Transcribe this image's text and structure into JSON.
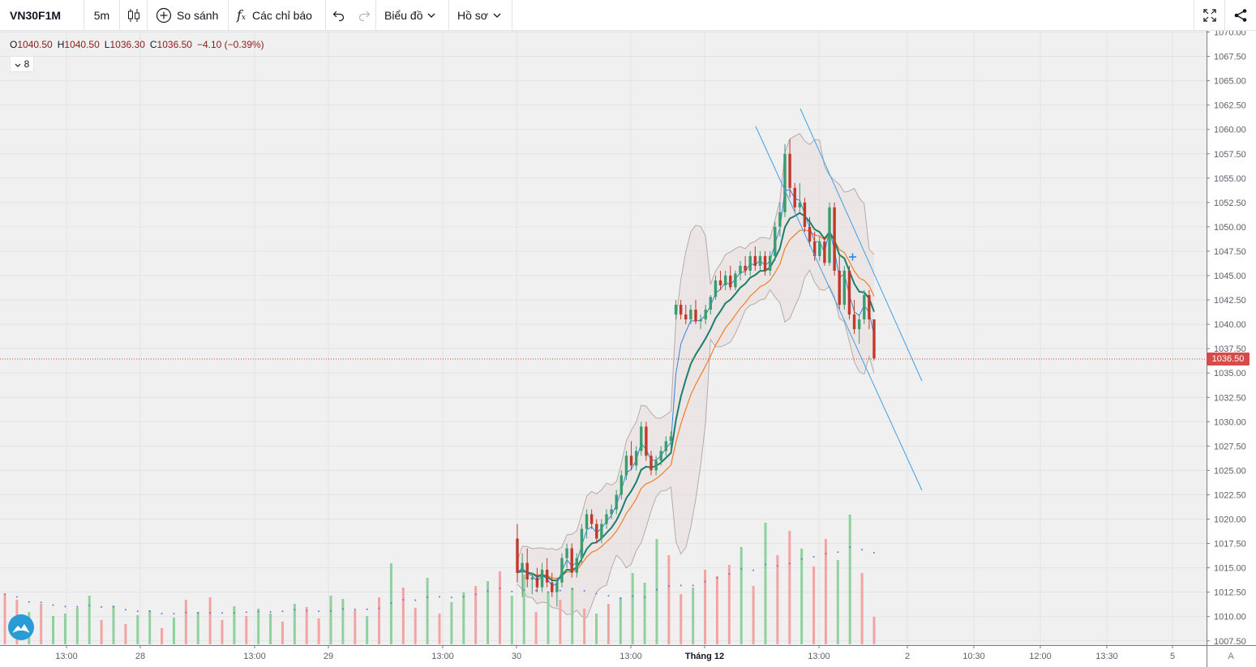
{
  "toolbar": {
    "symbol": "VN30F1M",
    "interval": "5m",
    "compare": "So sánh",
    "indicators": "Các chỉ báo",
    "chart_menu": "Biểu đồ",
    "profile_menu": "Hồ sơ"
  },
  "legend": {
    "open_label": "O",
    "open": "1040.50",
    "high_label": "H",
    "high": "1040.50",
    "low_label": "L",
    "low": "1036.30",
    "close_label": "C",
    "close": "1036.50",
    "change": "−4.10 (−0.39%)"
  },
  "indicator_count": "8",
  "last_price": "1036.50",
  "auto_scale": "A",
  "colors": {
    "up": "#3a9d6e",
    "down": "#c0392b",
    "vol_up": "#8fd19e",
    "vol_down": "#f4a3a3",
    "ema_fast": "#2e86de",
    "ema_slow": "#f07f23",
    "ema_mid": "#1b7f6c",
    "band": "#b6aaaa",
    "channel": "#3ea0e6",
    "price_line": "#e04040",
    "bg": "#f0f0f0"
  },
  "chart_data": {
    "type": "candlestick",
    "y_axis_labels": [
      "1070.00",
      "1067.50",
      "1065.00",
      "1062.50",
      "1060.00",
      "1057.50",
      "1055.00",
      "1052.50",
      "1050.00",
      "1047.50",
      "1045.00",
      "1042.50",
      "1040.00",
      "1037.50",
      "1035.00",
      "1032.50",
      "1030.00",
      "1027.50",
      "1025.00",
      "1022.50",
      "1020.00",
      "1017.50",
      "1015.00",
      "1012.50",
      "1010.00",
      "1007.50"
    ],
    "ylim": [
      1007.5,
      1070
    ],
    "x_axis_labels": [
      {
        "label": "13:00",
        "bold": false
      },
      {
        "label": "28",
        "bold": false
      },
      {
        "label": "13:00",
        "bold": false
      },
      {
        "label": "29",
        "bold": false
      },
      {
        "label": "13:00",
        "bold": false
      },
      {
        "label": "30",
        "bold": false
      },
      {
        "label": "13:00",
        "bold": false
      },
      {
        "label": "Tháng 12",
        "bold": true
      },
      {
        "label": "13:00",
        "bold": false
      },
      {
        "label": "2",
        "bold": false
      },
      {
        "label": "10:30",
        "bold": false
      },
      {
        "label": "12:00",
        "bold": false
      },
      {
        "label": "13:30",
        "bold": false
      },
      {
        "label": "5",
        "bold": false
      }
    ],
    "candles": [
      [
        1018.0,
        1019.5,
        1013.5,
        1014.5
      ],
      [
        1014.5,
        1016.5,
        1012.0,
        1015.5
      ],
      [
        1015.5,
        1017.0,
        1013.0,
        1013.8
      ],
      [
        1013.8,
        1014.5,
        1012.3,
        1014.0
      ],
      [
        1014.0,
        1015.0,
        1012.5,
        1013.0
      ],
      [
        1013.0,
        1015.5,
        1012.5,
        1014.8
      ],
      [
        1014.8,
        1016.0,
        1013.0,
        1013.5
      ],
      [
        1013.5,
        1014.5,
        1012.0,
        1012.5
      ],
      [
        1012.5,
        1014.0,
        1011.0,
        1013.5
      ],
      [
        1013.5,
        1016.5,
        1013.0,
        1016.0
      ],
      [
        1016.0,
        1017.5,
        1015.0,
        1017.0
      ],
      [
        1017.0,
        1017.5,
        1014.0,
        1014.5
      ],
      [
        1014.5,
        1016.5,
        1014.0,
        1016.0
      ],
      [
        1016.0,
        1019.5,
        1015.5,
        1019.0
      ],
      [
        1019.0,
        1021.0,
        1018.0,
        1020.5
      ],
      [
        1020.5,
        1021.0,
        1019.0,
        1019.5
      ],
      [
        1019.5,
        1020.0,
        1017.5,
        1018.0
      ],
      [
        1018.0,
        1020.0,
        1017.5,
        1019.5
      ],
      [
        1019.5,
        1021.0,
        1019.0,
        1020.5
      ],
      [
        1020.5,
        1021.5,
        1020.0,
        1021.0
      ],
      [
        1021.0,
        1023.0,
        1020.5,
        1022.5
      ],
      [
        1022.5,
        1025.0,
        1022.0,
        1024.5
      ],
      [
        1024.5,
        1027.0,
        1024.0,
        1026.5
      ],
      [
        1026.5,
        1028.0,
        1025.0,
        1025.5
      ],
      [
        1025.5,
        1027.5,
        1025.0,
        1027.0
      ],
      [
        1027.0,
        1030.0,
        1026.5,
        1029.5
      ],
      [
        1029.5,
        1030.0,
        1026.0,
        1026.5
      ],
      [
        1026.5,
        1027.0,
        1024.5,
        1025.0
      ],
      [
        1025.0,
        1026.5,
        1024.5,
        1026.0
      ],
      [
        1026.0,
        1027.5,
        1025.5,
        1027.0
      ],
      [
        1027.0,
        1028.5,
        1026.5,
        1028.0
      ],
      [
        1028.0,
        1029.0,
        1027.0,
        1028.5
      ],
      [
        1041.0,
        1042.5,
        1040.5,
        1042.0
      ],
      [
        1042.0,
        1042.5,
        1040.5,
        1041.0
      ],
      [
        1041.0,
        1042.0,
        1040.0,
        1040.5
      ],
      [
        1040.5,
        1042.0,
        1040.0,
        1041.5
      ],
      [
        1041.5,
        1042.5,
        1040.0,
        1040.3
      ],
      [
        1040.3,
        1041.0,
        1039.5,
        1040.5
      ],
      [
        1040.5,
        1042.0,
        1040.0,
        1041.5
      ],
      [
        1041.5,
        1043.0,
        1041.0,
        1042.8
      ],
      [
        1042.8,
        1045.0,
        1042.5,
        1044.5
      ],
      [
        1044.5,
        1045.5,
        1043.5,
        1044.0
      ],
      [
        1044.0,
        1045.5,
        1043.5,
        1045.0
      ],
      [
        1045.0,
        1046.0,
        1043.5,
        1043.8
      ],
      [
        1043.8,
        1045.5,
        1043.5,
        1045.2
      ],
      [
        1045.2,
        1046.5,
        1044.5,
        1046.0
      ],
      [
        1046.0,
        1047.0,
        1045.0,
        1045.5
      ],
      [
        1045.5,
        1047.5,
        1045.0,
        1047.0
      ],
      [
        1047.0,
        1048.0,
        1045.5,
        1046.0
      ],
      [
        1046.0,
        1047.5,
        1045.5,
        1047.0
      ],
      [
        1047.0,
        1047.5,
        1045.0,
        1045.5
      ],
      [
        1045.5,
        1047.5,
        1045.0,
        1047.0
      ],
      [
        1047.0,
        1050.5,
        1046.5,
        1050.0
      ],
      [
        1050.0,
        1052.5,
        1049.0,
        1051.5
      ],
      [
        1051.5,
        1058.5,
        1051.0,
        1057.5
      ],
      [
        1057.5,
        1059.0,
        1053.0,
        1054.0
      ],
      [
        1054.0,
        1054.5,
        1051.5,
        1052.0
      ],
      [
        1052.0,
        1054.5,
        1051.5,
        1052.5
      ],
      [
        1052.5,
        1053.0,
        1049.5,
        1050.0
      ],
      [
        1050.0,
        1051.0,
        1048.0,
        1048.5
      ],
      [
        1048.5,
        1049.5,
        1046.5,
        1047.0
      ],
      [
        1047.0,
        1049.0,
        1046.5,
        1048.5
      ],
      [
        1048.5,
        1049.0,
        1046.0,
        1046.3
      ],
      [
        1046.3,
        1052.5,
        1046.0,
        1052.0
      ],
      [
        1052.0,
        1052.5,
        1045.0,
        1045.5
      ],
      [
        1045.5,
        1047.0,
        1041.5,
        1042.0
      ],
      [
        1042.0,
        1046.0,
        1041.5,
        1045.5
      ],
      [
        1045.5,
        1046.0,
        1040.5,
        1041.0
      ],
      [
        1041.0,
        1042.5,
        1039.0,
        1039.5
      ],
      [
        1039.5,
        1041.0,
        1038.0,
        1040.5
      ],
      [
        1040.5,
        1043.5,
        1040.0,
        1043.0
      ],
      [
        1043.0,
        1043.5,
        1039.5,
        1040.5
      ],
      [
        1040.5,
        1040.5,
        1036.3,
        1036.5
      ]
    ],
    "volumes": [
      [
        62,
        "d"
      ],
      [
        55,
        "d"
      ],
      [
        40,
        "u"
      ],
      [
        50,
        "d"
      ],
      [
        35,
        "u"
      ],
      [
        38,
        "u"
      ],
      [
        45,
        "u"
      ],
      [
        60,
        "u"
      ],
      [
        30,
        "d"
      ],
      [
        48,
        "u"
      ],
      [
        25,
        "d"
      ],
      [
        36,
        "u"
      ],
      [
        42,
        "u"
      ],
      [
        20,
        "d"
      ],
      [
        33,
        "u"
      ],
      [
        55,
        "d"
      ],
      [
        40,
        "u"
      ],
      [
        58,
        "d"
      ],
      [
        30,
        "d"
      ],
      [
        47,
        "u"
      ],
      [
        35,
        "d"
      ],
      [
        44,
        "u"
      ],
      [
        38,
        "u"
      ],
      [
        28,
        "d"
      ],
      [
        50,
        "u"
      ],
      [
        46,
        "d"
      ],
      [
        32,
        "d"
      ],
      [
        60,
        "u"
      ],
      [
        56,
        "u"
      ],
      [
        42,
        "d"
      ],
      [
        35,
        "u"
      ],
      [
        58,
        "d"
      ],
      [
        100,
        "u"
      ],
      [
        70,
        "d"
      ],
      [
        45,
        "d"
      ],
      [
        82,
        "u"
      ],
      [
        38,
        "d"
      ],
      [
        52,
        "u"
      ],
      [
        64,
        "u"
      ],
      [
        72,
        "d"
      ],
      [
        78,
        "u"
      ],
      [
        90,
        "d"
      ],
      [
        60,
        "u"
      ],
      [
        86,
        "u"
      ],
      [
        40,
        "d"
      ],
      [
        65,
        "u"
      ],
      [
        55,
        "d"
      ],
      [
        70,
        "u"
      ],
      [
        44,
        "d"
      ],
      [
        38,
        "u"
      ],
      [
        50,
        "d"
      ],
      [
        58,
        "u"
      ],
      [
        88,
        "u"
      ],
      [
        76,
        "u"
      ],
      [
        130,
        "u"
      ],
      [
        110,
        "d"
      ],
      [
        62,
        "d"
      ],
      [
        70,
        "u"
      ],
      [
        92,
        "d"
      ],
      [
        84,
        "d"
      ],
      [
        98,
        "d"
      ],
      [
        120,
        "u"
      ],
      [
        72,
        "d"
      ],
      [
        150,
        "u"
      ],
      [
        110,
        "d"
      ],
      [
        140,
        "d"
      ],
      [
        118,
        "u"
      ],
      [
        96,
        "d"
      ],
      [
        130,
        "d"
      ],
      [
        104,
        "u"
      ],
      [
        160,
        "u"
      ],
      [
        88,
        "d"
      ],
      [
        34,
        "d"
      ]
    ]
  }
}
